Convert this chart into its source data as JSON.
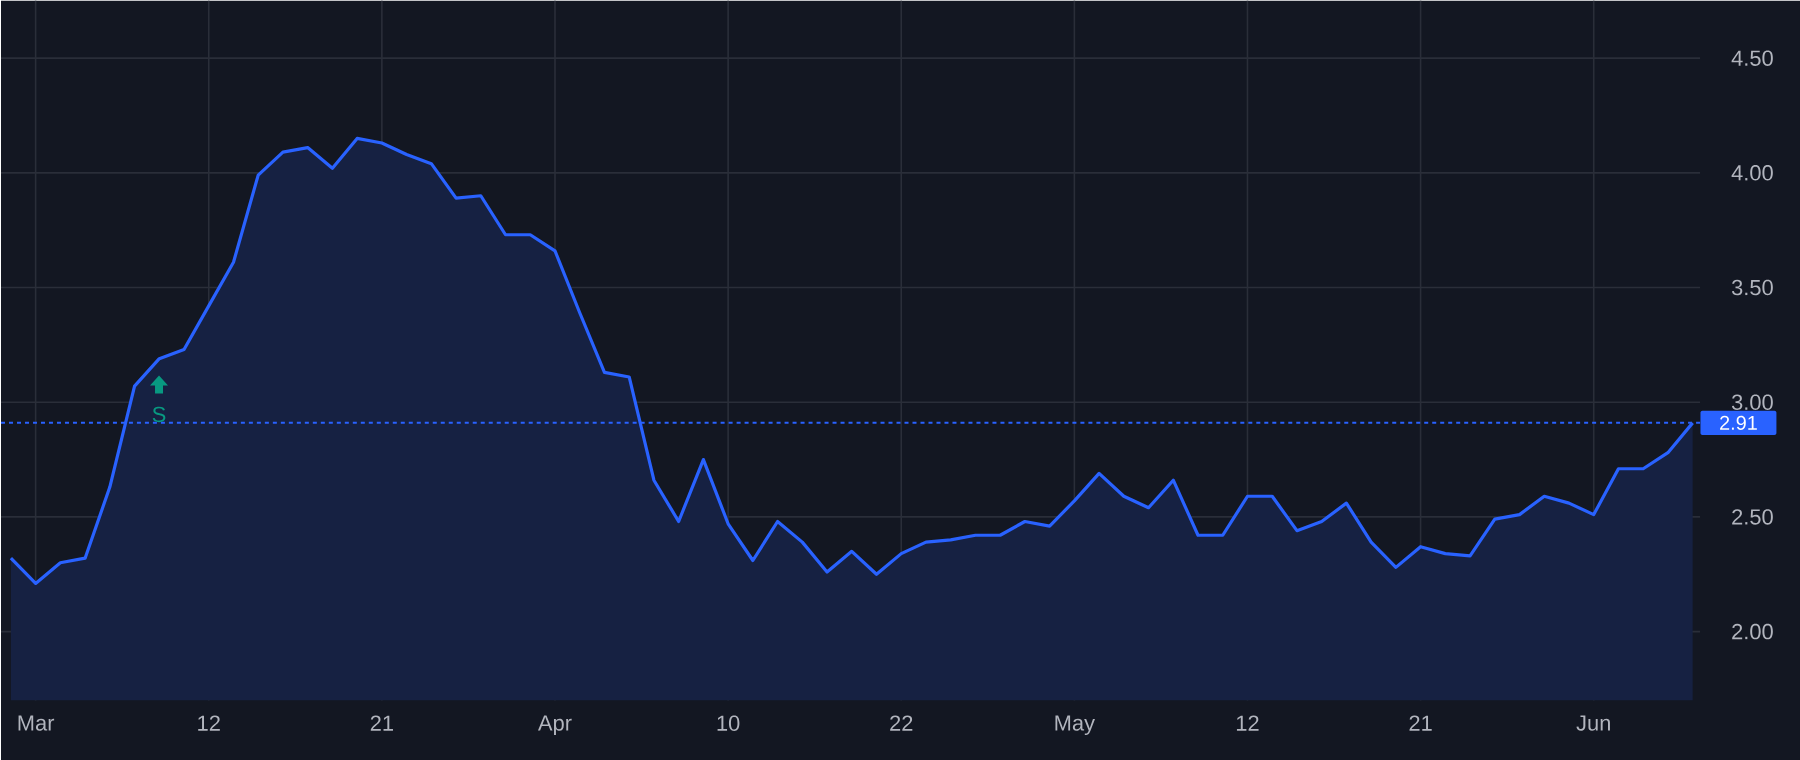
{
  "chart_data": {
    "type": "area",
    "categories": [
      null,
      "Mar",
      null,
      null,
      null,
      null,
      null,
      null,
      "12",
      null,
      null,
      null,
      null,
      null,
      null,
      "21",
      null,
      null,
      null,
      null,
      null,
      null,
      "Apr",
      null,
      null,
      null,
      null,
      null,
      null,
      "10",
      null,
      null,
      null,
      null,
      null,
      null,
      "22",
      null,
      null,
      null,
      null,
      null,
      null,
      "May",
      null,
      null,
      null,
      null,
      null,
      null,
      "12",
      null,
      null,
      null,
      null,
      null,
      null,
      "21",
      null,
      null,
      null,
      null,
      null,
      null,
      "Jun",
      null,
      null,
      null,
      null
    ],
    "series": [
      {
        "color": "#2962ff",
        "values": [
          2.32,
          2.21,
          2.3,
          2.32,
          2.63,
          3.07,
          3.19,
          3.23,
          3.42,
          3.61,
          3.99,
          4.09,
          4.11,
          4.02,
          4.15,
          4.13,
          4.08,
          4.04,
          3.89,
          3.9,
          3.73,
          3.73,
          3.66,
          3.39,
          3.13,
          3.11,
          2.66,
          2.48,
          2.75,
          2.47,
          2.31,
          2.48,
          2.39,
          2.26,
          2.35,
          2.25,
          2.34,
          2.39,
          2.4,
          2.42,
          2.42,
          2.48,
          2.46,
          2.57,
          2.69,
          2.59,
          2.54,
          2.66,
          2.42,
          2.42,
          2.59,
          2.59,
          2.44,
          2.48,
          2.56,
          2.39,
          2.28,
          2.37,
          2.34,
          2.33,
          2.49,
          2.51,
          2.59,
          2.56,
          2.51,
          2.71,
          2.71,
          2.78,
          2.91
        ]
      }
    ],
    "ylim": [
      1.7,
      4.75
    ],
    "yticks": [
      {
        "value": 2,
        "label": "2.00"
      },
      {
        "value": 2.5,
        "label": "2.50"
      },
      {
        "value": 3,
        "label": "3.00"
      },
      {
        "value": 3.5,
        "label": "3.50"
      },
      {
        "value": 4,
        "label": "4.00"
      },
      {
        "value": 4.5,
        "label": "4.50"
      }
    ],
    "grid": true,
    "ref_lines": [
      {
        "axis": "y",
        "value": 2.91,
        "label": "2.91",
        "color": "#2962ff",
        "line_style": "dotted"
      }
    ],
    "annotations": [
      "S"
    ]
  }
}
